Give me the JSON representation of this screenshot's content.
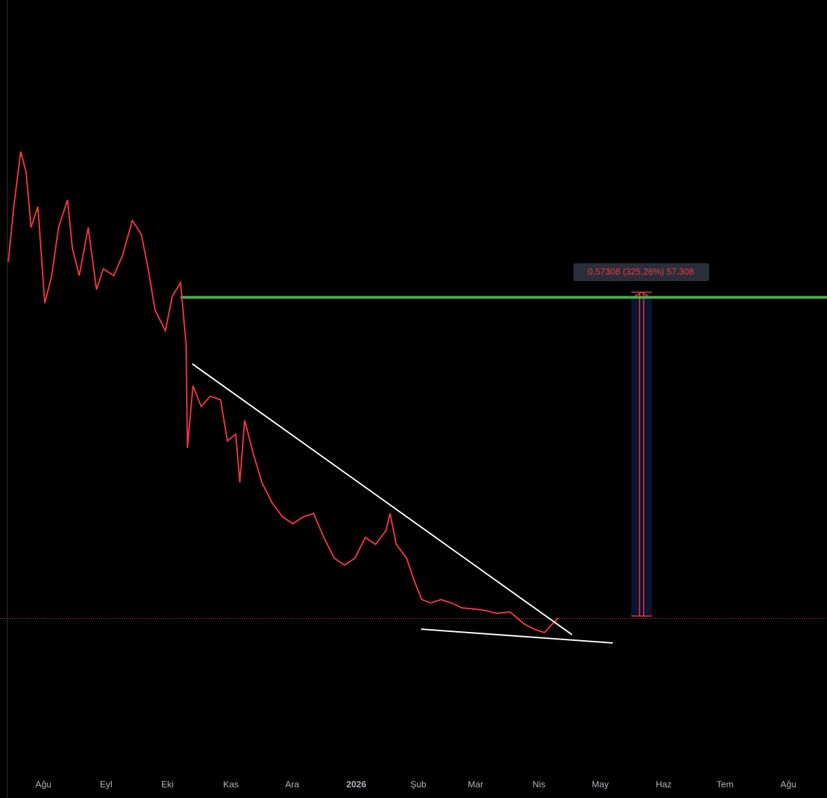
{
  "time_axis": {
    "labels": [
      "Ağu",
      "Eyl",
      "Eki",
      "Kas",
      "Ara",
      "2026",
      "Şub",
      "Mar",
      "Nis",
      "May",
      "Haz",
      "Tem",
      "Ağu"
    ]
  },
  "measure_tool": {
    "label": "0,57308 (325,26%) 57.308"
  }
}
